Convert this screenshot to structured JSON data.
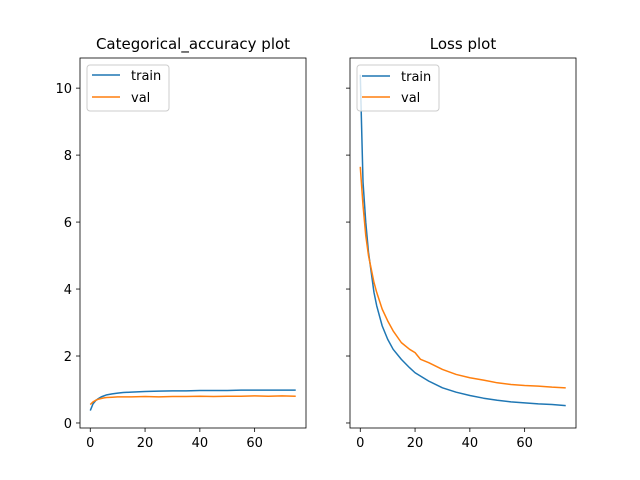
{
  "chart_data": [
    {
      "type": "line",
      "title": "Categorical_accuracy plot",
      "xlabel": "",
      "ylabel": "",
      "xlim": [
        -3.75,
        78.75
      ],
      "ylim": [
        -0.15,
        10.9
      ],
      "xticks": [
        0,
        20,
        40,
        60
      ],
      "yticks": [
        0,
        2,
        4,
        6,
        8,
        10
      ],
      "show_yticklabels": true,
      "grid": false,
      "legend": "upper-left",
      "series": [
        {
          "name": "train",
          "color": "#1f77b4",
          "x": [
            0,
            1,
            2,
            3,
            4,
            5,
            6,
            8,
            10,
            12,
            15,
            20,
            25,
            30,
            35,
            40,
            45,
            50,
            55,
            60,
            65,
            70,
            75
          ],
          "y": [
            0.37,
            0.57,
            0.67,
            0.73,
            0.78,
            0.81,
            0.84,
            0.87,
            0.89,
            0.91,
            0.92,
            0.94,
            0.95,
            0.96,
            0.96,
            0.97,
            0.97,
            0.97,
            0.98,
            0.98,
            0.98,
            0.98,
            0.98
          ]
        },
        {
          "name": "val",
          "color": "#ff7f0e",
          "x": [
            0,
            1,
            2,
            3,
            4,
            5,
            6,
            8,
            10,
            12,
            15,
            20,
            25,
            30,
            35,
            40,
            45,
            50,
            55,
            60,
            65,
            70,
            75
          ],
          "y": [
            0.55,
            0.63,
            0.68,
            0.71,
            0.73,
            0.75,
            0.76,
            0.77,
            0.78,
            0.78,
            0.78,
            0.79,
            0.78,
            0.79,
            0.79,
            0.8,
            0.79,
            0.8,
            0.8,
            0.81,
            0.8,
            0.81,
            0.8
          ]
        }
      ]
    },
    {
      "type": "line",
      "title": "Loss plot",
      "xlabel": "",
      "ylabel": "",
      "xlim": [
        -3.75,
        78.75
      ],
      "ylim": [
        -0.15,
        10.9
      ],
      "xticks": [
        0,
        20,
        40,
        60
      ],
      "yticks": [
        0,
        2,
        4,
        6,
        8,
        10
      ],
      "show_yticklabels": false,
      "grid": false,
      "legend": "upper-left",
      "series": [
        {
          "name": "train",
          "color": "#1f77b4",
          "x": [
            0,
            1,
            2,
            3,
            4,
            5,
            6,
            8,
            10,
            12,
            15,
            18,
            20,
            25,
            30,
            35,
            40,
            45,
            50,
            55,
            60,
            65,
            70,
            75
          ],
          "y": [
            10.4,
            7.2,
            6.0,
            5.1,
            4.5,
            3.9,
            3.5,
            2.9,
            2.5,
            2.2,
            1.9,
            1.65,
            1.5,
            1.25,
            1.05,
            0.92,
            0.82,
            0.74,
            0.68,
            0.63,
            0.6,
            0.57,
            0.55,
            0.52
          ]
        },
        {
          "name": "val",
          "color": "#ff7f0e",
          "x": [
            0,
            1,
            2,
            3,
            4,
            5,
            6,
            8,
            10,
            12,
            15,
            18,
            20,
            22,
            25,
            30,
            35,
            40,
            45,
            50,
            55,
            60,
            65,
            70,
            75
          ],
          "y": [
            7.65,
            6.5,
            5.6,
            5.0,
            4.6,
            4.2,
            3.9,
            3.4,
            3.05,
            2.75,
            2.4,
            2.2,
            2.1,
            1.9,
            1.8,
            1.6,
            1.45,
            1.35,
            1.28,
            1.2,
            1.15,
            1.12,
            1.1,
            1.07,
            1.05
          ]
        }
      ]
    }
  ]
}
